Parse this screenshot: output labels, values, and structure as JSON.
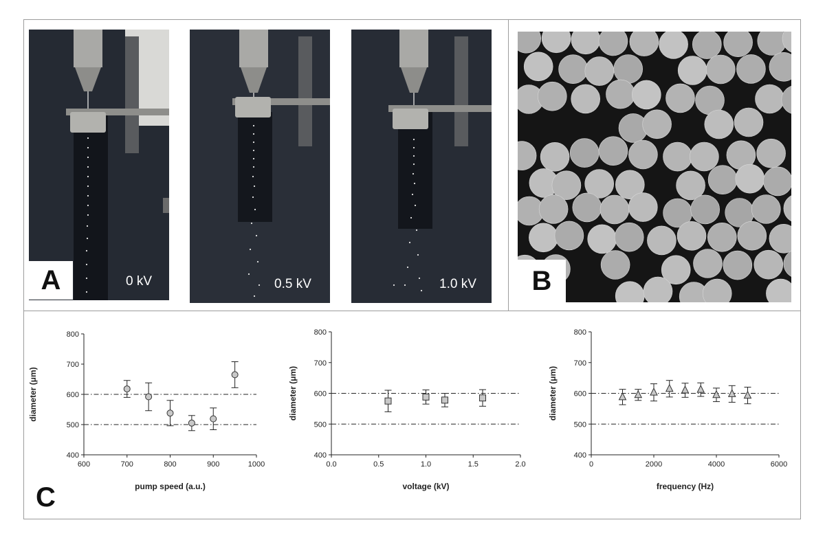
{
  "panels": {
    "a_label": "A",
    "b_label": "B",
    "c_label": "C",
    "photos": [
      {
        "voltage_label": "0 kV"
      },
      {
        "voltage_label": "0.5 kV"
      },
      {
        "voltage_label": "1.0 kV"
      }
    ]
  },
  "colors": {
    "marker_fill": "#c8c8c8",
    "marker_stroke": "#333333",
    "reference_line": "#222222"
  },
  "chart_data": [
    {
      "type": "scatter",
      "marker": "circle",
      "xlabel": "pump speed (a.u.)",
      "ylabel": "diameter (μm)",
      "xlim": [
        600,
        1000
      ],
      "ylim": [
        400,
        800
      ],
      "xticks": [
        600,
        700,
        800,
        900,
        1000
      ],
      "yticks": [
        400,
        500,
        600,
        700,
        800
      ],
      "reference_lines": [
        500,
        600
      ],
      "grid": false,
      "points": [
        {
          "x": 700,
          "y": 618,
          "err": 28
        },
        {
          "x": 750,
          "y": 592,
          "err": 46
        },
        {
          "x": 800,
          "y": 538,
          "err": 42
        },
        {
          "x": 850,
          "y": 505,
          "err": 25
        },
        {
          "x": 900,
          "y": 519,
          "err": 36
        },
        {
          "x": 950,
          "y": 665,
          "err": 43
        }
      ]
    },
    {
      "type": "scatter",
      "marker": "square",
      "xlabel": "voltage (kV)",
      "ylabel": "diameter (μm)",
      "xlim": [
        0,
        2
      ],
      "ylim": [
        400,
        800
      ],
      "xticks": [
        "0.0",
        "0.5",
        "1.0",
        "1.5",
        "2.0"
      ],
      "yticks": [
        400,
        500,
        600,
        700,
        800
      ],
      "reference_lines": [
        500,
        600
      ],
      "grid": false,
      "points": [
        {
          "x": 0.6,
          "y": 575,
          "err": 35
        },
        {
          "x": 1.0,
          "y": 588,
          "err": 23
        },
        {
          "x": 1.2,
          "y": 578,
          "err": 22
        },
        {
          "x": 1.6,
          "y": 585,
          "err": 27
        }
      ]
    },
    {
      "type": "scatter",
      "marker": "triangle",
      "xlabel": "frequency (Hz)",
      "ylabel": "diameter (μm)",
      "xlim": [
        0,
        6000
      ],
      "ylim": [
        400,
        800
      ],
      "xticks": [
        0,
        2000,
        4000,
        6000
      ],
      "yticks": [
        400,
        500,
        600,
        700,
        800
      ],
      "reference_lines": [
        500,
        600
      ],
      "grid": false,
      "points": [
        {
          "x": 1000,
          "y": 588,
          "err": 25
        },
        {
          "x": 1500,
          "y": 595,
          "err": 18
        },
        {
          "x": 2000,
          "y": 603,
          "err": 28
        },
        {
          "x": 2500,
          "y": 615,
          "err": 27
        },
        {
          "x": 3000,
          "y": 610,
          "err": 23
        },
        {
          "x": 3500,
          "y": 612,
          "err": 22
        },
        {
          "x": 4000,
          "y": 595,
          "err": 22
        },
        {
          "x": 4500,
          "y": 598,
          "err": 27
        },
        {
          "x": 5000,
          "y": 593,
          "err": 27
        }
      ]
    }
  ]
}
